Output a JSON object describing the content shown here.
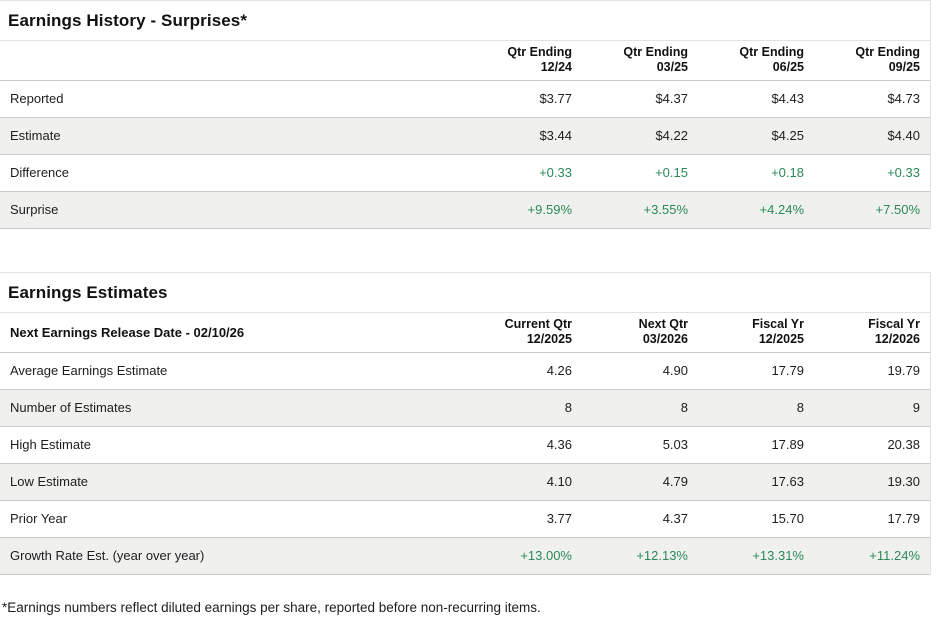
{
  "colors": {
    "accent_green": "#2a8a57",
    "stripe_bg": "#f0f0ee",
    "row_border": "#c9c9c7",
    "text": "#1d1d1d"
  },
  "history": {
    "title": "Earnings History - Surprises*",
    "columns": [
      {
        "line1": "Qtr Ending",
        "line2": "12/24"
      },
      {
        "line1": "Qtr Ending",
        "line2": "03/25"
      },
      {
        "line1": "Qtr Ending",
        "line2": "06/25"
      },
      {
        "line1": "Qtr Ending",
        "line2": "09/25"
      }
    ],
    "rows": [
      {
        "label": "Reported",
        "values": [
          "$3.77",
          "$4.37",
          "$4.43",
          "$4.73"
        ],
        "green": false
      },
      {
        "label": "Estimate",
        "values": [
          "$3.44",
          "$4.22",
          "$4.25",
          "$4.40"
        ],
        "green": false
      },
      {
        "label": "Difference",
        "values": [
          "+0.33",
          "+0.15",
          "+0.18",
          "+0.33"
        ],
        "green": true
      },
      {
        "label": "Surprise",
        "values": [
          "+9.59%",
          "+3.55%",
          "+4.24%",
          "+7.50%"
        ],
        "green": true
      }
    ]
  },
  "estimates": {
    "title": "Earnings Estimates",
    "release_date_label": "Next Earnings Release Date - 02/10/26",
    "columns": [
      {
        "line1": "Current Qtr",
        "line2": "12/2025"
      },
      {
        "line1": "Next Qtr",
        "line2": "03/2026"
      },
      {
        "line1": "Fiscal Yr",
        "line2": "12/2025"
      },
      {
        "line1": "Fiscal Yr",
        "line2": "12/2026"
      }
    ],
    "rows": [
      {
        "label": "Average Earnings Estimate",
        "values": [
          "4.26",
          "4.90",
          "17.79",
          "19.79"
        ],
        "green": false
      },
      {
        "label": "Number of Estimates",
        "values": [
          "8",
          "8",
          "8",
          "9"
        ],
        "green": false
      },
      {
        "label": "High Estimate",
        "values": [
          "4.36",
          "5.03",
          "17.89",
          "20.38"
        ],
        "green": false
      },
      {
        "label": "Low Estimate",
        "values": [
          "4.10",
          "4.79",
          "17.63",
          "19.30"
        ],
        "green": false
      },
      {
        "label": "Prior Year",
        "values": [
          "3.77",
          "4.37",
          "15.70",
          "17.79"
        ],
        "green": false
      },
      {
        "label": "Growth Rate Est. (year over year)",
        "values": [
          "+13.00%",
          "+12.13%",
          "+13.31%",
          "+11.24%"
        ],
        "green": true
      }
    ]
  },
  "footnote": "*Earnings numbers reflect diluted earnings per share, reported before non-recurring items."
}
